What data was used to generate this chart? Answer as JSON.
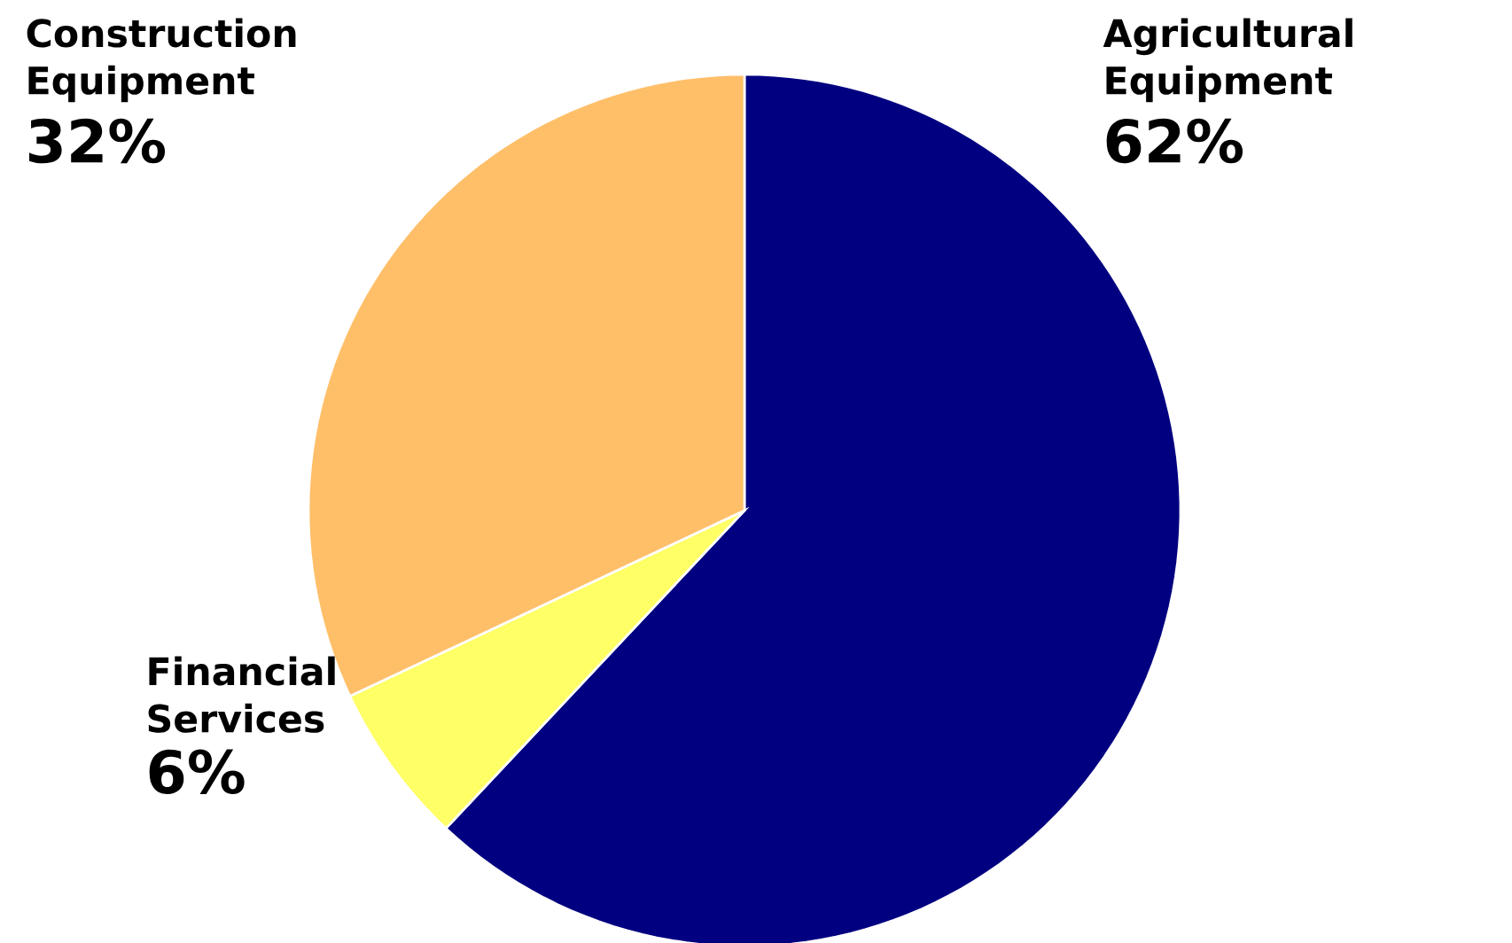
{
  "chart_data": {
    "type": "pie",
    "categories": [
      "Agricultural Equipment",
      "Financial Services",
      "Construction Equipment"
    ],
    "values": [
      62,
      6,
      32
    ],
    "value_labels": [
      "62%",
      "6%",
      "32%"
    ],
    "colors": [
      "#000080",
      "#ffff66",
      "#ffbf69"
    ]
  }
}
